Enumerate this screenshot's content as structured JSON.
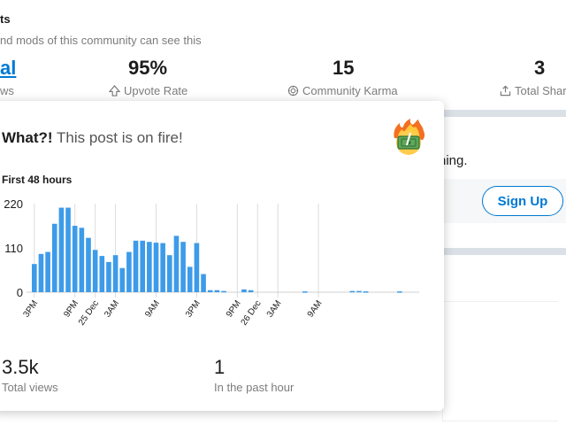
{
  "header": {
    "title_fragment": "ts",
    "subtitle_fragment": "nd mods of this community can see this"
  },
  "stats": [
    {
      "value": "al",
      "label": "ws",
      "icon": "none",
      "link": true
    },
    {
      "value": "95%",
      "label": "Upvote Rate",
      "icon": "upvote-icon"
    },
    {
      "value": "15",
      "label": "Community Karma",
      "icon": "karma-icon"
    },
    {
      "value": "3",
      "label": "Total Shar",
      "icon": "share-icon"
    }
  ],
  "background": {
    "text_fragment": "hing.",
    "signup_label": "Sign Up"
  },
  "fire_card": {
    "title_bold": "What?!",
    "title_rest": "This post is on fire!",
    "emoji": "on-fire-money-emoji",
    "chart_heading": "First 48 hours",
    "total_views_value": "3.5k",
    "total_views_label": "Total views",
    "past_hour_value": "1",
    "past_hour_label": "In the past hour"
  },
  "colors": {
    "bar": "#3d9be9",
    "accent_link": "#0079d3",
    "grid": "#dcdcdc"
  },
  "chart_data": {
    "type": "bar",
    "title": "First 48 hours",
    "y_ticks": [
      0,
      110,
      220
    ],
    "ylim": [
      0,
      220
    ],
    "x_tick_labels": [
      "3PM",
      "9PM",
      "25 Dec",
      "3AM",
      "9AM",
      "3PM",
      "9PM",
      "26 Dec",
      "3AM",
      "9AM"
    ],
    "x_tick_bar_index": [
      0,
      6,
      9,
      12,
      18,
      24,
      30,
      33,
      36,
      42
    ],
    "values": [
      70,
      95,
      100,
      170,
      210,
      210,
      165,
      160,
      135,
      105,
      90,
      75,
      92,
      60,
      100,
      128,
      128,
      125,
      123,
      122,
      92,
      140,
      125,
      63,
      122,
      45,
      5,
      5,
      3,
      0,
      0,
      7,
      5,
      0,
      0,
      0,
      0,
      0,
      0,
      0,
      2,
      0,
      0,
      0,
      0,
      0,
      0,
      3,
      3,
      2,
      0,
      0,
      0,
      0,
      2,
      0
    ],
    "grid": true
  }
}
